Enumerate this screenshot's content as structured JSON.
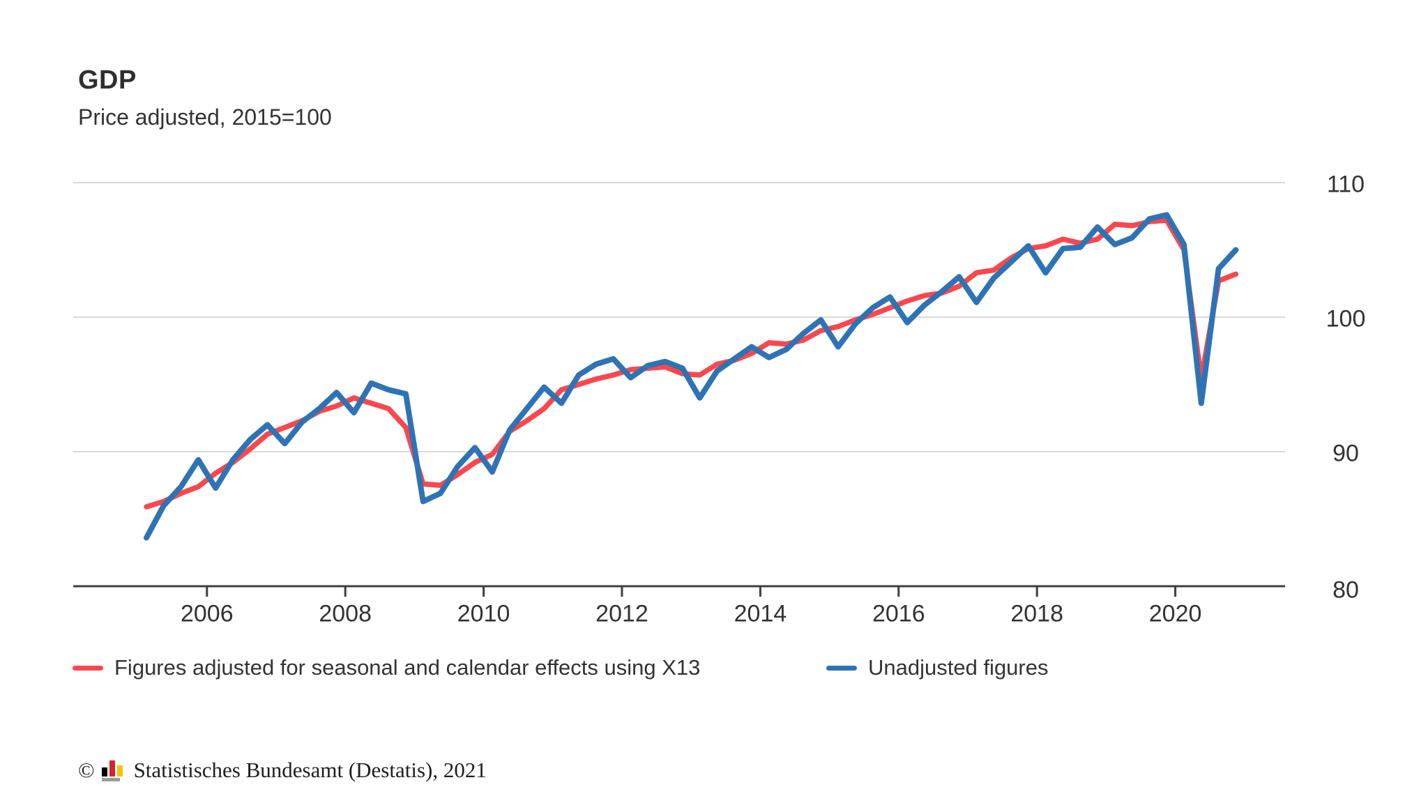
{
  "title": "GDP",
  "subtitle": "Price adjusted, 2015=100",
  "legend": [
    {
      "label": "Figures adjusted for seasonal and calendar effects using X13",
      "color": "#f8484e"
    },
    {
      "label": "Unadjusted figures",
      "color": "#2e73b4"
    }
  ],
  "footer": {
    "copyright_symbol": "©",
    "source_text": "Statistisches Bundesamt (Destatis), 2021"
  },
  "colors": {
    "adjusted": "#f8484e",
    "unadjusted": "#2e73b4",
    "grid": "#d9d9d9",
    "axis": "#3f3f3f",
    "text": "#333333"
  },
  "chart_data": {
    "type": "line",
    "title": "GDP",
    "subtitle": "Price adjusted, 2015=100",
    "x_unit": "quarter",
    "x_start_year": 2005,
    "x_end_year": 2020,
    "x_tick_years": [
      2006,
      2008,
      2010,
      2012,
      2014,
      2016,
      2018,
      2020
    ],
    "y_ticks": [
      110,
      100,
      90,
      80
    ],
    "ylim": [
      80,
      113
    ],
    "grid": "horizontal-only",
    "legend_position": "bottom",
    "series": [
      {
        "name": "Figures adjusted for seasonal and calendar effects using X13",
        "color": "#f8484e",
        "values": [
          85.9,
          86.3,
          86.9,
          87.4,
          88.4,
          89.2,
          90.2,
          91.3,
          91.8,
          92.3,
          93.0,
          93.4,
          94.0,
          93.6,
          93.2,
          91.8,
          87.6,
          87.5,
          88.3,
          89.2,
          89.8,
          91.5,
          92.3,
          93.2,
          94.6,
          95.0,
          95.4,
          95.7,
          96.1,
          96.2,
          96.3,
          95.8,
          95.7,
          96.5,
          96.8,
          97.3,
          98.1,
          98.0,
          98.3,
          99.0,
          99.3,
          99.8,
          100.2,
          100.7,
          101.2,
          101.6,
          101.8,
          102.3,
          103.3,
          103.5,
          104.4,
          105.1,
          105.3,
          105.8,
          105.5,
          105.8,
          106.9,
          106.8,
          107.1,
          107.2,
          105.0,
          95.4,
          102.7,
          103.2
        ]
      },
      {
        "name": "Unadjusted figures",
        "color": "#2e73b4",
        "values": [
          83.6,
          86.0,
          87.4,
          89.4,
          87.3,
          89.4,
          90.9,
          92.0,
          90.6,
          92.2,
          93.2,
          94.4,
          92.9,
          95.1,
          94.6,
          94.3,
          86.3,
          86.9,
          88.9,
          90.3,
          88.5,
          91.6,
          93.2,
          94.8,
          93.6,
          95.7,
          96.5,
          96.9,
          95.5,
          96.4,
          96.7,
          96.2,
          94.0,
          96.0,
          96.9,
          97.8,
          97.0,
          97.6,
          98.8,
          99.8,
          97.8,
          99.5,
          100.7,
          101.5,
          99.6,
          100.9,
          101.9,
          103.0,
          101.1,
          102.9,
          104.1,
          105.3,
          103.3,
          105.1,
          105.2,
          106.7,
          105.4,
          105.9,
          107.3,
          107.6,
          105.4,
          93.6,
          103.6,
          105.0
        ]
      }
    ]
  }
}
